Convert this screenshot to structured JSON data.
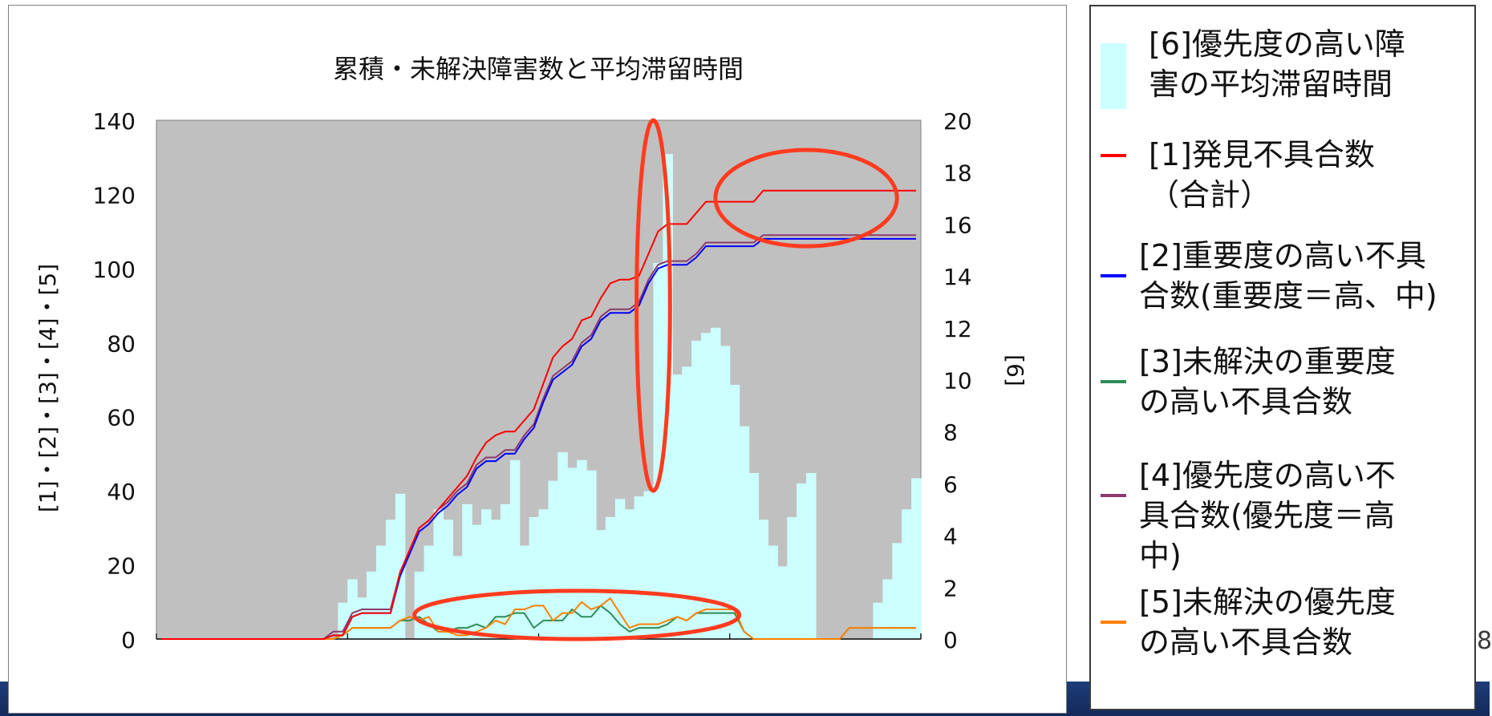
{
  "chart_data": {
    "type": "bar",
    "title": "累積・未解決障害数と平均滞留時間",
    "ylabel": "[1]・[2]・[3]・[4]・[5]",
    "y2label": "[6]",
    "ylim": [
      0,
      140
    ],
    "y2lim": [
      0,
      20
    ],
    "yticks": [
      0,
      20,
      40,
      60,
      80,
      100,
      120,
      140
    ],
    "y2ticks": [
      0,
      2,
      4,
      6,
      8,
      10,
      12,
      14,
      16,
      18,
      20
    ],
    "x_count": 80,
    "background_color": "#c0c0c0",
    "series": [
      {
        "name": "[6]優先度の高い障害の平均滞留時間",
        "kind": "bar",
        "axis": "right",
        "color": "#ccffff",
        "values": [
          0,
          0,
          0,
          0,
          0,
          0,
          0,
          0,
          0,
          0,
          0,
          0,
          0,
          0,
          0,
          0,
          0,
          0,
          0,
          1.4,
          2.3,
          1.6,
          2.6,
          3.6,
          4.6,
          5.6,
          0,
          2.6,
          3.6,
          5,
          4.6,
          3.2,
          5.2,
          4.4,
          5,
          4.6,
          5.2,
          6.9,
          3.6,
          4.7,
          5,
          6.1,
          7.2,
          6.6,
          6.9,
          6.5,
          4.2,
          4.7,
          5.4,
          5,
          5.5,
          5.7,
          14.5,
          18.7,
          10.2,
          10.5,
          11.5,
          11.8,
          12,
          11.3,
          9.8,
          8.2,
          6.4,
          4.6,
          3.6,
          2.8,
          4.7,
          6,
          6.4,
          0,
          0,
          0,
          0,
          0,
          0,
          1.4,
          2.3,
          3.7,
          5,
          6.2
        ]
      },
      {
        "name": "[1]発見不具合数（合計）",
        "kind": "line",
        "axis": "left",
        "color": "#ff0000",
        "values": [
          0,
          0,
          0,
          0,
          0,
          0,
          0,
          0,
          0,
          0,
          0,
          0,
          0,
          0,
          0,
          0,
          0,
          0,
          1,
          1,
          6,
          7,
          7,
          7,
          7,
          18,
          24,
          30,
          32,
          35,
          38,
          41,
          44,
          49,
          53,
          55,
          56,
          56,
          59,
          62,
          69,
          76,
          79,
          81,
          86,
          87,
          92,
          96,
          97,
          97,
          98,
          104,
          110,
          112,
          112,
          112,
          115,
          118,
          118,
          118,
          118,
          118,
          118,
          121,
          121,
          121,
          121,
          121,
          121,
          121,
          121,
          121,
          121,
          121,
          121,
          121,
          121,
          121,
          121,
          121
        ]
      },
      {
        "name": "[2]重要度の高い不具合数(重要度＝高、中)",
        "kind": "line",
        "axis": "left",
        "color": "#0000ff",
        "values": [
          0,
          0,
          0,
          0,
          0,
          0,
          0,
          0,
          0,
          0,
          0,
          0,
          0,
          0,
          0,
          0,
          0,
          0,
          1,
          1,
          6,
          7,
          7,
          7,
          7,
          17,
          23,
          29,
          31,
          34,
          36,
          39,
          41,
          46,
          48,
          48,
          50,
          50,
          54,
          57,
          64,
          70,
          72,
          74,
          79,
          81,
          86,
          88,
          88,
          88,
          90,
          96,
          100,
          101,
          101,
          101,
          103,
          106,
          106,
          106,
          106,
          106,
          106,
          108,
          108,
          108,
          108,
          108,
          108,
          108,
          108,
          108,
          108,
          108,
          108,
          108,
          108,
          108,
          108,
          108
        ]
      },
      {
        "name": "[3]未解決の重要度の高い不具合数",
        "kind": "line",
        "axis": "left",
        "color": "#2e8b57",
        "values": [
          0,
          0,
          0,
          0,
          0,
          0,
          0,
          0,
          0,
          0,
          0,
          0,
          0,
          0,
          0,
          0,
          0,
          0,
          0,
          1,
          3,
          3,
          3,
          3,
          3,
          5,
          5,
          6,
          4,
          2,
          2,
          3,
          3,
          4,
          3,
          6,
          6,
          7,
          7,
          3,
          5,
          5,
          5,
          8,
          6,
          6,
          9,
          7,
          4,
          2,
          3,
          3,
          3,
          4,
          6,
          5,
          7,
          7,
          7,
          7,
          7,
          2,
          0,
          0,
          0,
          0,
          0,
          0,
          0,
          0,
          0,
          0,
          3,
          3,
          3,
          3,
          3,
          3,
          3,
          3
        ]
      },
      {
        "name": "[4]優先度の高い不具合数(優先度＝高中)",
        "kind": "line",
        "axis": "left",
        "color": "#8b3a6b",
        "values": [
          0,
          0,
          0,
          0,
          0,
          0,
          0,
          0,
          0,
          0,
          0,
          0,
          0,
          0,
          0,
          0,
          0,
          0,
          2,
          2,
          7,
          8,
          8,
          8,
          8,
          18,
          24,
          30,
          32,
          35,
          37,
          40,
          42,
          47,
          49,
          49,
          51,
          51,
          55,
          58,
          65,
          71,
          73,
          75,
          80,
          82,
          87,
          89,
          89,
          89,
          91,
          97,
          101,
          102,
          102,
          102,
          104,
          107,
          107,
          107,
          107,
          107,
          107,
          109,
          109,
          109,
          109,
          109,
          109,
          109,
          109,
          109,
          109,
          109,
          109,
          109,
          109,
          109,
          109,
          109
        ]
      },
      {
        "name": "[5]未解決の優先度の高い不具合数",
        "kind": "line",
        "axis": "left",
        "color": "#ff8000",
        "values": [
          0,
          0,
          0,
          0,
          0,
          0,
          0,
          0,
          0,
          0,
          0,
          0,
          0,
          0,
          0,
          0,
          0,
          0,
          0,
          1,
          3,
          3,
          3,
          3,
          3,
          5,
          6,
          5,
          6,
          2,
          2,
          1,
          1,
          2,
          3,
          5,
          4,
          8,
          8,
          9,
          9,
          5,
          7,
          7,
          10,
          8,
          9,
          11,
          7,
          3,
          4,
          4,
          4,
          5,
          6,
          5,
          7,
          8,
          8,
          8,
          8,
          2,
          0,
          0,
          0,
          0,
          0,
          0,
          0,
          0,
          0,
          0,
          3,
          3,
          3,
          3,
          3,
          3,
          3,
          3
        ]
      }
    ],
    "annotations": [
      {
        "shape": "ellipse",
        "color": "#ff3b1f",
        "around": "[6] peak",
        "x_index": 51.5,
        "y_data": 90,
        "width_steps": 3.5,
        "height_data": 100
      },
      {
        "shape": "ellipse",
        "color": "#ff3b1f",
        "around": "[1] plateau",
        "x_index": 67.5,
        "y_data": 119,
        "width_steps": 19,
        "height_data": 26
      },
      {
        "shape": "ellipse",
        "color": "#ff3b1f",
        "around": "[5] low values",
        "x_index": 43.5,
        "y_data": 6.5,
        "width_steps": 34,
        "height_data": 13
      }
    ],
    "legend": "right"
  },
  "legend": {
    "items": [
      {
        "label": "[6]優先度の高い障\n害の平均滞留時間",
        "color": "#ccffff",
        "icon": "bar-swatch"
      },
      {
        "label": "[1]発見不具合数\n（合計）",
        "color": "#ff0000",
        "icon": "line-swatch"
      },
      {
        "label": "[2]重要度の高い不具\n合数(重要度＝高、中)",
        "color": "#0000ff",
        "icon": "line-swatch"
      },
      {
        "label": "[3]未解決の重要度\nの高い不具合数",
        "color": "#2e8b57",
        "icon": "line-swatch"
      },
      {
        "label": "[4]優先度の高い不\n具合数(優先度＝高\n中)",
        "color": "#8b3a6b",
        "icon": "line-swatch"
      },
      {
        "label": "[5]未解決の優先度\nの高い不具合数",
        "color": "#ff8000",
        "icon": "line-swatch"
      }
    ]
  },
  "page": {
    "number": "8"
  }
}
